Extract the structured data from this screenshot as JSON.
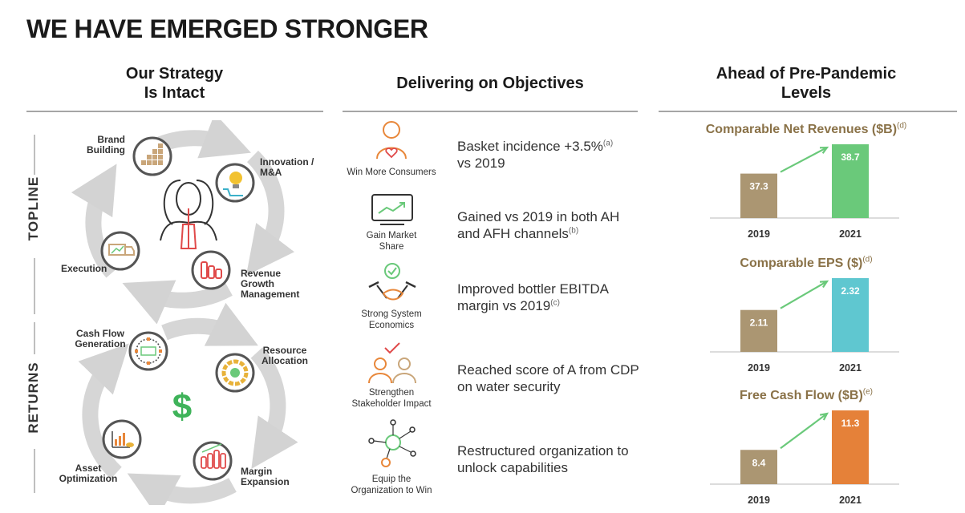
{
  "title": "WE HAVE EMERGED STRONGER",
  "columns": {
    "strategy": [
      "Our Strategy",
      "Is Intact"
    ],
    "objectives": "Delivering on Objectives",
    "pandemic": [
      "Ahead of Pre-Pandemic",
      "Levels"
    ]
  },
  "strategy": {
    "topline_label": "TOPLINE",
    "returns_label": "RETURNS",
    "brand_building": [
      "Brand",
      "Building"
    ],
    "innovation": [
      "Innovation /",
      "M&A"
    ],
    "execution": "Execution",
    "rgm": [
      "Revenue",
      "Growth",
      "Management"
    ],
    "cash_flow": [
      "Cash Flow",
      "Generation"
    ],
    "resource": [
      "Resource",
      "Allocation"
    ],
    "asset": [
      "Asset",
      "Optimization"
    ],
    "margin": [
      "Margin",
      "Expansion"
    ],
    "center_symbol": "$"
  },
  "objectives": [
    {
      "caption": [
        "Win More Consumers"
      ],
      "text": [
        "Basket incidence +3.5%",
        "vs 2019"
      ],
      "note": "(a)"
    },
    {
      "caption": [
        "Gain Market",
        "Share"
      ],
      "text": [
        "Gained vs 2019 in both AH",
        "and AFH channels"
      ],
      "note": "(b)"
    },
    {
      "caption": [
        "Strong System",
        "Economics"
      ],
      "text": [
        "Improved bottler EBITDA",
        "margin vs 2019"
      ],
      "note": "(c)"
    },
    {
      "caption": [
        "Strengthen",
        "Stakeholder Impact"
      ],
      "text": [
        "Reached score of A from CDP",
        "on water security"
      ],
      "note": ""
    },
    {
      "caption": [
        "Equip the",
        "Organization to Win"
      ],
      "text": [
        "Restructured organization to",
        "unlock capabilities"
      ],
      "note": ""
    }
  ],
  "colors": {
    "beige": "#ab9672",
    "green": "#6ac97a",
    "teal": "#5fc7d0",
    "orange": "#e58139",
    "title_brown": "#8a7248",
    "arrow_green": "#6ac97a",
    "icon_orange": "#e8873a",
    "icon_red": "#e04a4a"
  },
  "chart_data": [
    {
      "type": "bar",
      "title": "Comparable Net Revenues ($B)",
      "title_note": "(d)",
      "categories": [
        "2019",
        "2021"
      ],
      "values": [
        37.3,
        38.7
      ],
      "labels": [
        "37.3",
        "38.7"
      ],
      "colors": [
        "#ab9672",
        "#6ac97a"
      ]
    },
    {
      "type": "bar",
      "title": "Comparable EPS ($)",
      "title_note": "(d)",
      "categories": [
        "2019",
        "2021"
      ],
      "values": [
        2.11,
        2.32
      ],
      "labels": [
        "2.11",
        "2.32"
      ],
      "colors": [
        "#ab9672",
        "#5fc7d0"
      ]
    },
    {
      "type": "bar",
      "title": "Free Cash Flow ($B)",
      "title_note": "(e)",
      "categories": [
        "2019",
        "2021"
      ],
      "values": [
        8.4,
        11.3
      ],
      "labels": [
        "8.4",
        "11.3"
      ],
      "colors": [
        "#ab9672",
        "#e58139"
      ]
    }
  ]
}
